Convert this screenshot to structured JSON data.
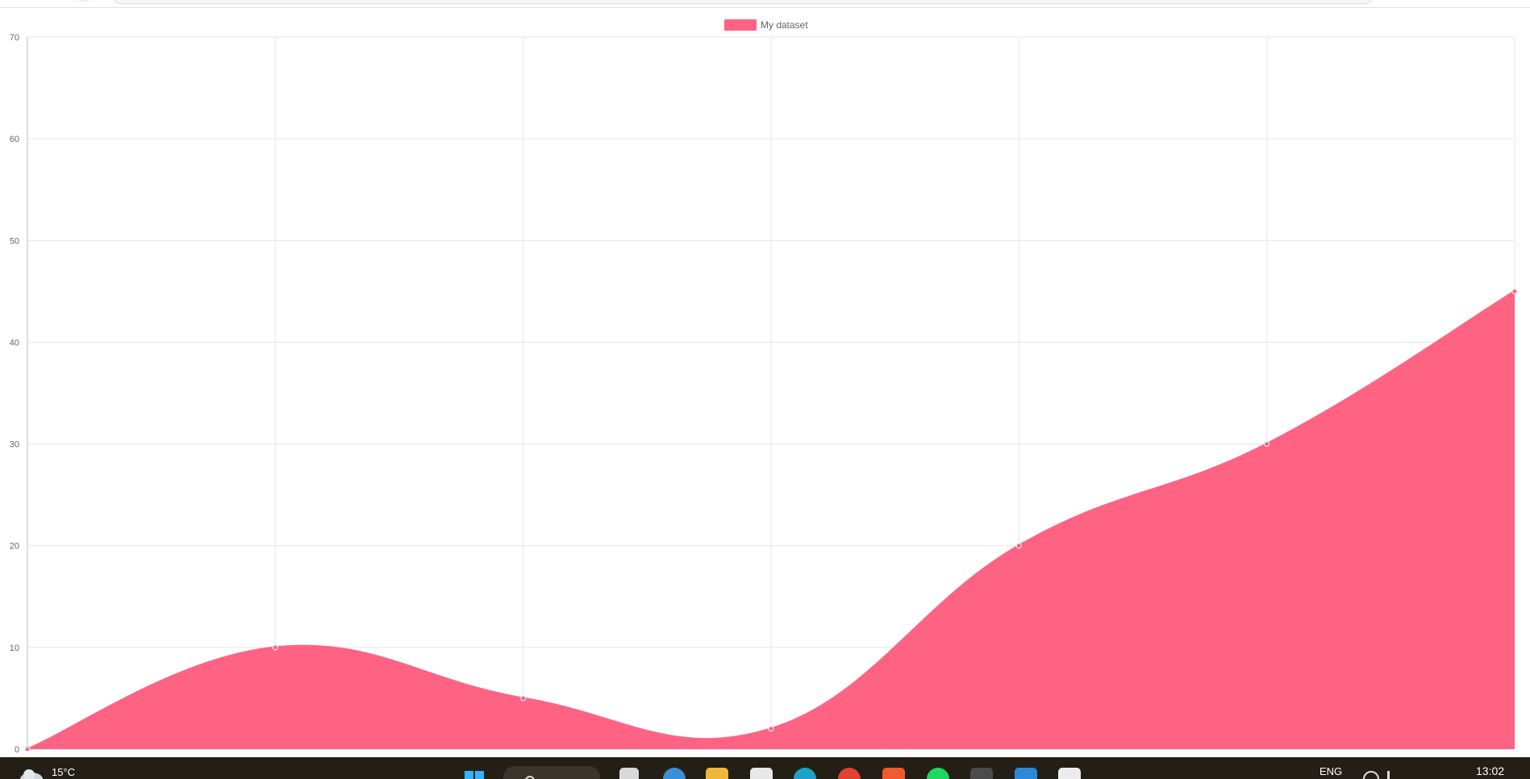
{
  "chart_data": {
    "type": "area",
    "title": "",
    "xlabel": "",
    "ylabel": "",
    "x": [
      0,
      1,
      2,
      3,
      4,
      5,
      6
    ],
    "series": [
      {
        "name": "My dataset",
        "values": [
          0,
          10,
          5,
          2,
          20,
          30,
          45
        ]
      }
    ],
    "ylim": [
      0,
      70
    ],
    "yticks": [
      "0",
      "10",
      "20",
      "30",
      "40",
      "50",
      "60",
      "70"
    ],
    "grid": true,
    "legend": "top-center",
    "fill_color": "#ff6384"
  },
  "taskbar": {
    "weather_temp": "15°C",
    "language": "ENG",
    "clock": "13:02",
    "icons": [
      "windows-start-icon",
      "search-icon",
      "file-manager-icon",
      "edge-icon",
      "folder-icon",
      "store-icon",
      "browser-icon",
      "chrome-icon",
      "brave-icon",
      "spotify-icon",
      "app-icon",
      "vscode-icon",
      "app-active-icon"
    ]
  }
}
